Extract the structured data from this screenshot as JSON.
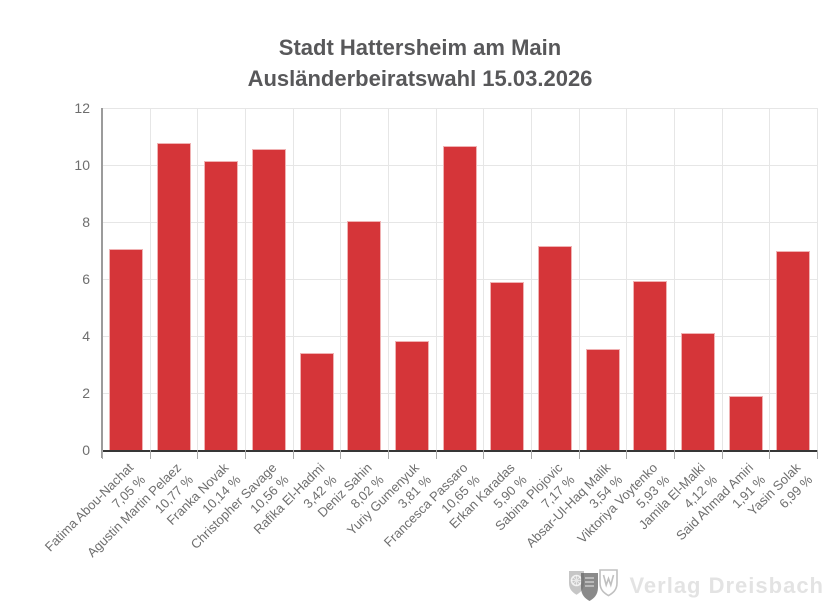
{
  "header": {
    "title_line1": "Stadt Hattersheim am Main",
    "title_line2": "Ausländerbeiratswahl 15.03.2026"
  },
  "watermark": {
    "text": "Verlag Dreisbach",
    "logos": [
      "wheel-crest-icon",
      "city-crest-icon",
      "w-shield-icon"
    ]
  },
  "chart_data": {
    "type": "bar",
    "title": "Stadt Hattersheim am Main\nAusländerbeiratswahl 15.03.2026",
    "categories": [
      "Fatima Abou-Nachat",
      "Agustin Martin Pelaez",
      "Franka Novak",
      "Christopher Savage",
      "Rafika El-Hadmi",
      "Deniz Sahin",
      "Yuriy Gumenyuk",
      "Francesca Passaro",
      "Erkan Karadas",
      "Sabina Plojovic",
      "Absar-Ul-Haq Malik",
      "Viktoriya Voytenko",
      "Jamila El-Malki",
      "Said Ahmad Amiri",
      "Yasin Solak"
    ],
    "values": [
      7.05,
      10.77,
      10.14,
      10.56,
      3.42,
      8.02,
      3.81,
      10.65,
      5.9,
      7.17,
      3.54,
      5.93,
      4.12,
      1.91,
      6.99
    ],
    "value_labels": [
      "7,05 %",
      "10,77 %",
      "10,14 %",
      "10,56 %",
      "3,42 %",
      "8,02 %",
      "3,81 %",
      "10,65 %",
      "5,90 %",
      "7,17 %",
      "3,54 %",
      "5,93 %",
      "4,12 %",
      "1,91 %",
      "6,99 %"
    ],
    "xlabel": "",
    "ylabel": "",
    "ylim": [
      0,
      12
    ],
    "yticks": [
      0,
      2,
      4,
      6,
      8,
      10,
      12
    ],
    "grid": true,
    "legend": "none",
    "colors": {
      "bar": "#d53539",
      "bar_border": "#f0b2b3",
      "title": "#58585a",
      "tick_label": "#6e6e6e",
      "grid": "#e6e6e6",
      "x_axis": "#363636",
      "y_axis": "#9b9b9b"
    }
  }
}
